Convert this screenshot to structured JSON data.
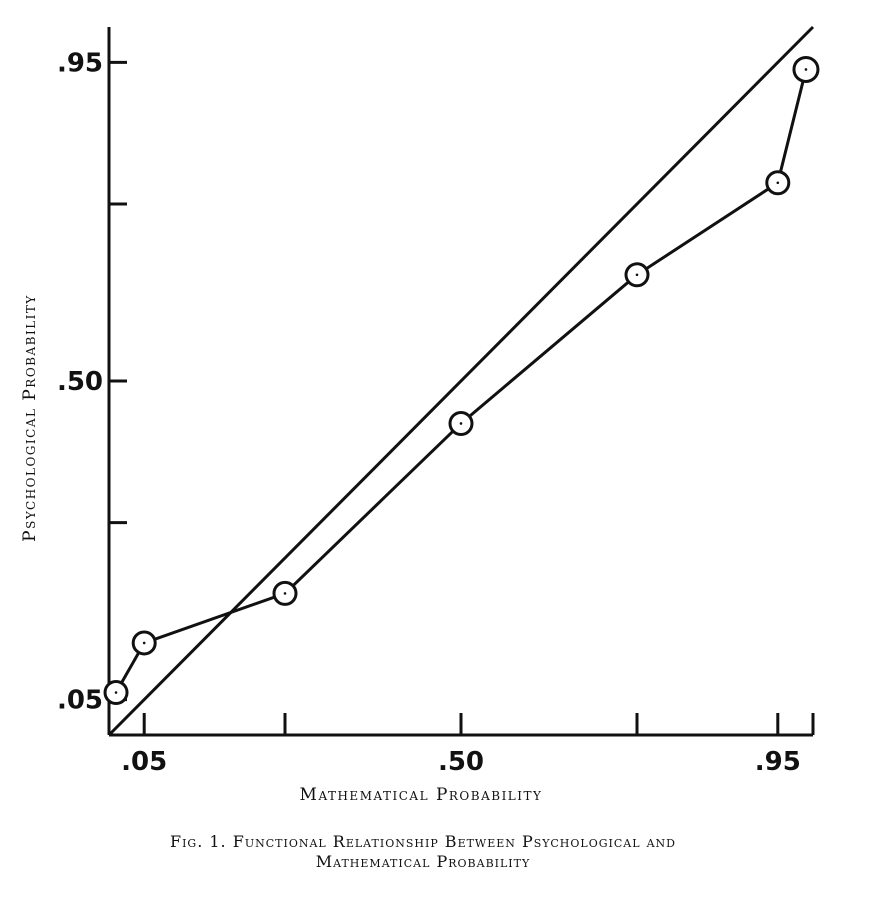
{
  "chart_data": {
    "type": "line",
    "xlabel": "Mathematical Probability",
    "ylabel": "Psychological Probability",
    "caption_line1": "Fig. 1. Functional Relationship Between Psychological and",
    "caption_line2": "Mathematical Probability",
    "xlim": [
      0.0,
      1.0
    ],
    "ylim": [
      0.0,
      1.0
    ],
    "x_ticks": [
      0.05,
      0.25,
      0.5,
      0.75,
      0.95,
      1.0
    ],
    "x_tick_labels": [
      ".05",
      "",
      ".50",
      "",
      ".95",
      ""
    ],
    "y_ticks": [
      0.05,
      0.3,
      0.5,
      0.75,
      0.95
    ],
    "y_tick_labels": [
      ".05",
      "",
      ".50",
      "",
      ".95"
    ],
    "series": [
      {
        "x": [
          0.01,
          0.05,
          0.25,
          0.5,
          0.75,
          0.95,
          0.99
        ],
        "y": [
          0.06,
          0.13,
          0.2,
          0.44,
          0.65,
          0.78,
          0.94
        ]
      },
      {
        "x": [
          0.0,
          1.0
        ],
        "y": [
          0.0,
          1.0
        ]
      }
    ],
    "grid": false,
    "legend": "none"
  }
}
